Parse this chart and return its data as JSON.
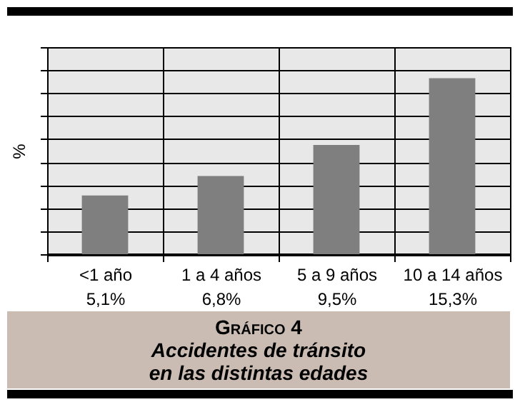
{
  "chart_data": {
    "type": "bar",
    "title": "Gráfico 4",
    "subtitle": "Accidentes de tránsito\nen las distintas edades",
    "ylabel": "%",
    "categories": [
      "<1 año",
      "1 a 4 años",
      "5 a 9 años",
      "10 a 14 años"
    ],
    "values": [
      5.1,
      6.8,
      9.5,
      15.3
    ],
    "value_labels": [
      "5,1%",
      "6,8%",
      "9,5%",
      "15,3%"
    ],
    "color": "#7f7f7f",
    "ylim": [
      0,
      18
    ],
    "yticks": [
      {
        "value": 0,
        "label": null
      },
      {
        "value": 2,
        "label": null
      },
      {
        "value": 4,
        "label": null
      },
      {
        "value": 6,
        "label": null
      },
      {
        "value": 8,
        "label": null
      },
      {
        "value": 10,
        "label": null
      },
      {
        "value": 12,
        "label": null
      },
      {
        "value": 14,
        "label": null
      },
      {
        "value": 16,
        "label": null
      },
      {
        "value": 18,
        "label": null
      }
    ],
    "grid": true
  }
}
